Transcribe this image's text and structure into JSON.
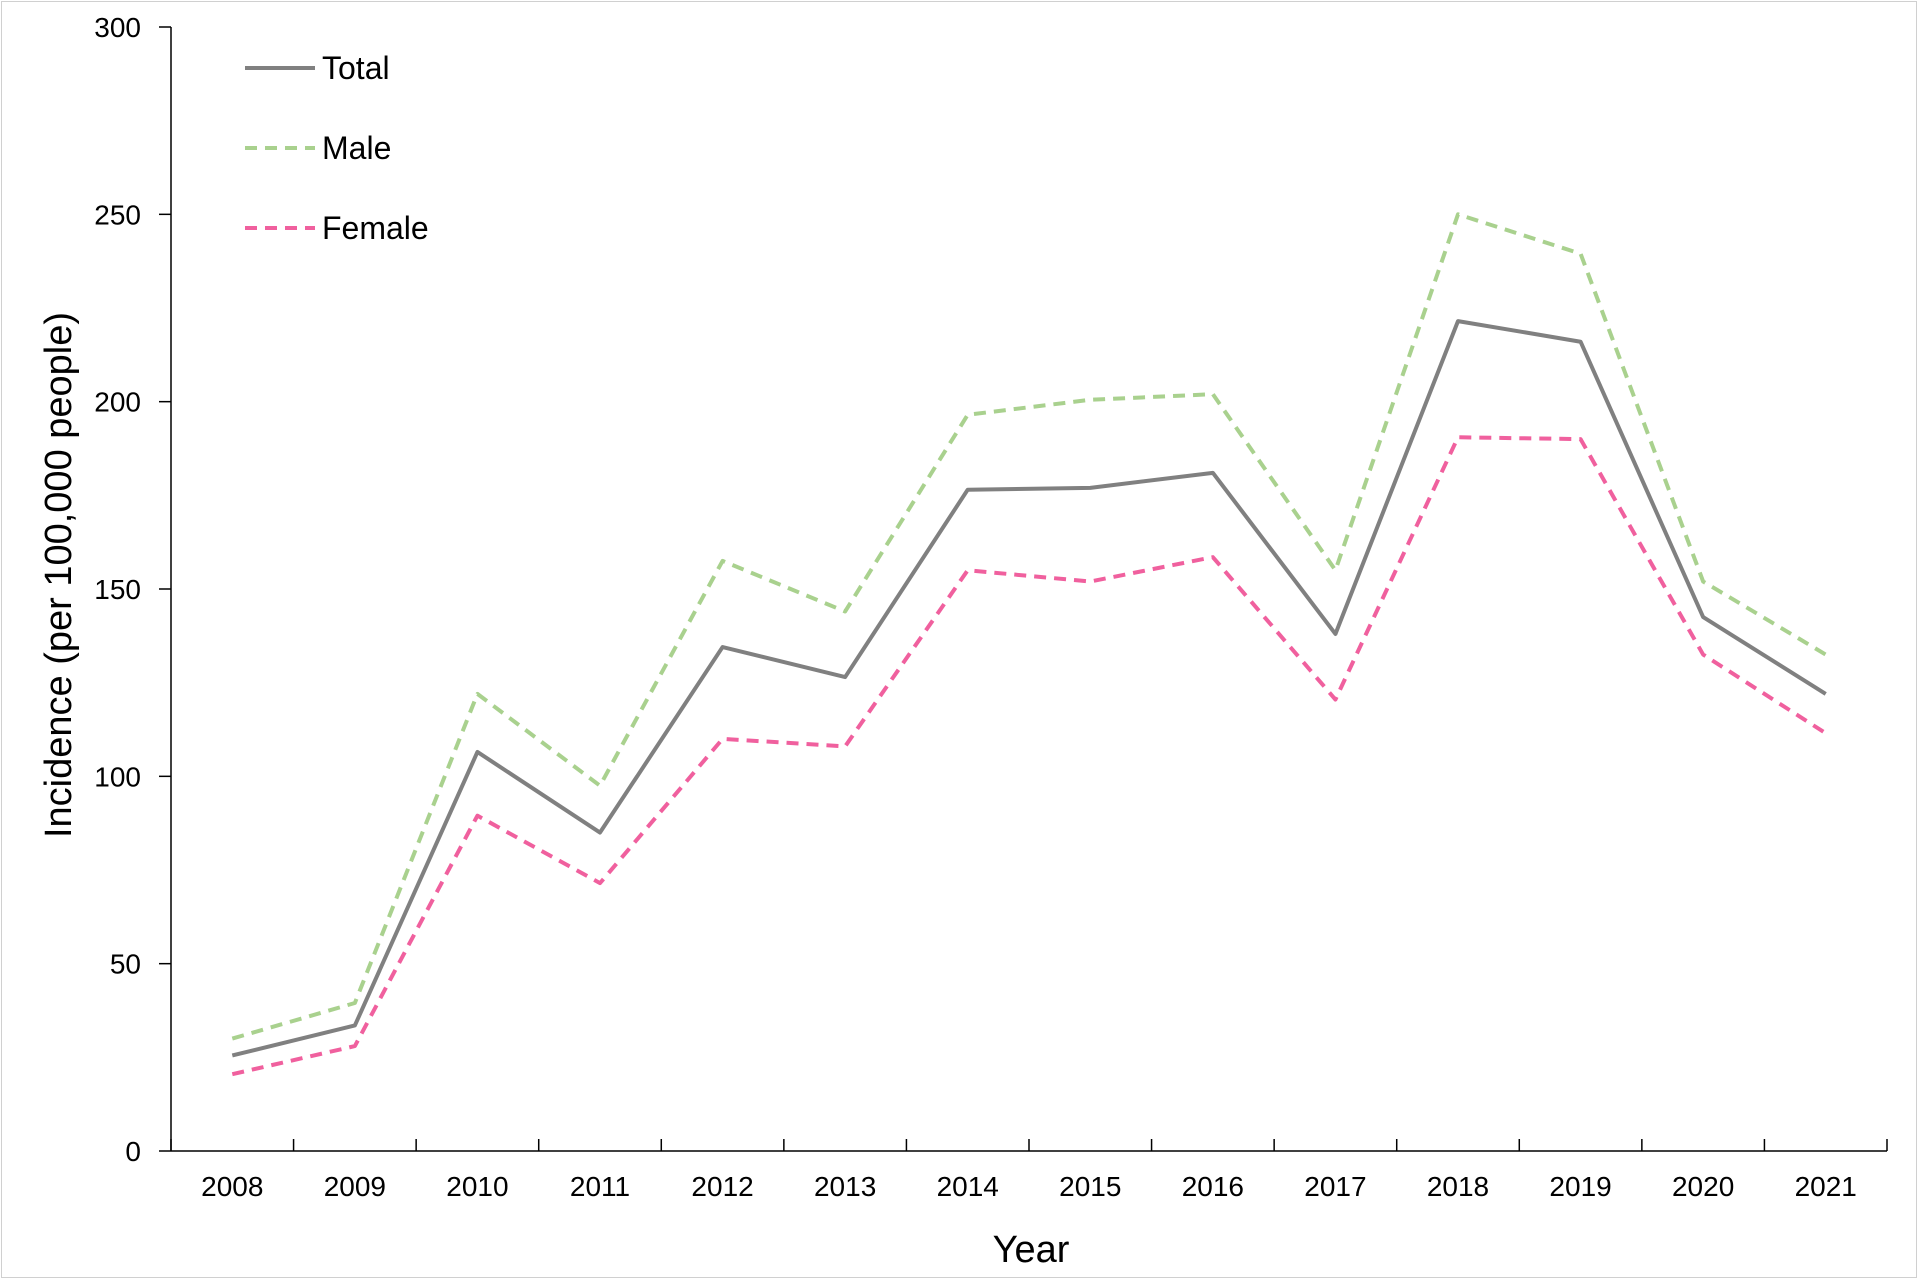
{
  "chart_data": {
    "type": "line",
    "title": "",
    "xlabel": "Year",
    "ylabel": "Incidence  (per  100,000 people)",
    "ylim": [
      0,
      300
    ],
    "yticks": [
      0,
      50,
      100,
      150,
      200,
      250,
      300
    ],
    "categories": [
      "2008",
      "2009",
      "2010",
      "2011",
      "2012",
      "2013",
      "2014",
      "2015",
      "2016",
      "2017",
      "2018",
      "2019",
      "2020",
      "2021"
    ],
    "series": [
      {
        "name": "Total",
        "color": "#808080",
        "dash": "solid",
        "values": [
          25.5,
          33.5,
          106.5,
          85.0,
          134.5,
          126.5,
          176.5,
          177.0,
          181.0,
          138.0,
          221.5,
          216.0,
          142.5,
          122.0
        ]
      },
      {
        "name": "Male",
        "color": "#a9d18e",
        "dash": "dashed",
        "values": [
          30.0,
          39.5,
          122.0,
          97.5,
          157.5,
          144.0,
          196.5,
          200.5,
          202.0,
          155.0,
          250.0,
          239.5,
          152.0,
          132.5
        ]
      },
      {
        "name": "Female",
        "color": "#f0609e",
        "dash": "dashed",
        "values": [
          20.5,
          28.0,
          89.5,
          71.5,
          110.0,
          108.0,
          155.0,
          152.0,
          158.5,
          120.5,
          190.5,
          190.0,
          132.5,
          111.5
        ]
      }
    ],
    "grid": false,
    "legend_position": "top-left"
  }
}
